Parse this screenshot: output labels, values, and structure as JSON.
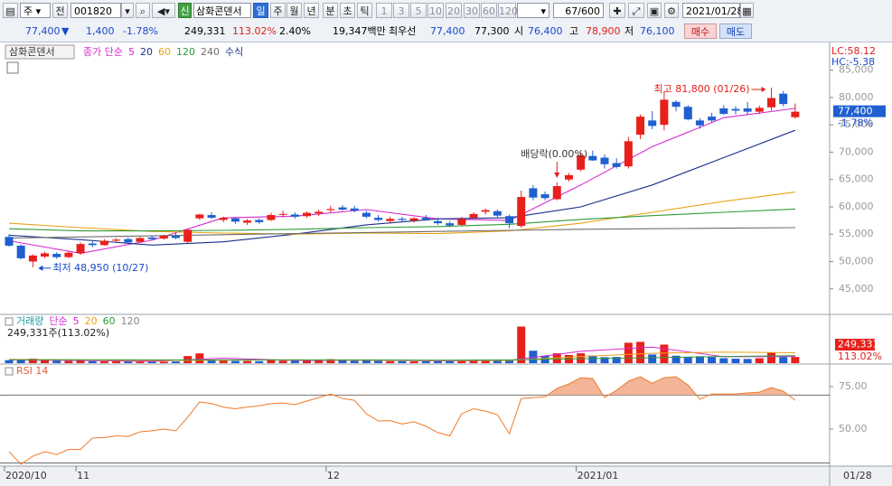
{
  "toolbar": {
    "market": "주",
    "prev_button": "전",
    "code": "001820",
    "new_badge": "신",
    "name": "삼화콘덴서",
    "periods": [
      "일",
      "주",
      "월",
      "년",
      "분",
      "초",
      "틱"
    ],
    "intervals": [
      "1",
      "3",
      "5",
      "10",
      "20",
      "30",
      "60",
      "120"
    ],
    "count": "67/600",
    "date": "2021/01/28"
  },
  "quote_bar": {
    "price": "77,400",
    "arrow": "▼",
    "change": "1,400",
    "change_rate": "-1.78%",
    "volume": "249,331",
    "volume_ratio": "113.02%",
    "turnover": "2.40%",
    "amount": "19,347백만",
    "best_label": "최우선",
    "ask": "77,400",
    "bid": "77,300",
    "open_label": "시",
    "open": "76,400",
    "high_label": "고",
    "high": "78,900",
    "low_label": "저",
    "low": "76,100",
    "buy": "매수",
    "sell": "매도"
  },
  "chart_data": [
    {
      "type": "candlestick",
      "name_button": "삼화콘덴서",
      "ma_label": "종가 단순",
      "formula_label": "수식",
      "categories": [
        "2020/10",
        null,
        null,
        null,
        null,
        null,
        "11",
        null,
        null,
        null,
        null,
        null,
        null,
        null,
        null,
        null,
        null,
        null,
        null,
        null,
        null,
        null,
        null,
        null,
        null,
        null,
        null,
        "12",
        null,
        null,
        null,
        null,
        null,
        null,
        null,
        null,
        null,
        null,
        null,
        null,
        null,
        null,
        null,
        null,
        null,
        null,
        null,
        null,
        "2021/01",
        null,
        null,
        null,
        null,
        null,
        null,
        null,
        null,
        null,
        null,
        null,
        null,
        null,
        null,
        null,
        null,
        null,
        null
      ],
      "open": [
        54500,
        52900,
        50000,
        50900,
        51400,
        50800,
        51500,
        53300,
        53000,
        53800,
        54100,
        53600,
        54400,
        54200,
        54700,
        53600,
        57900,
        58500,
        57600,
        57900,
        57100,
        57600,
        57600,
        58600,
        58600,
        58300,
        58800,
        59400,
        59900,
        59700,
        58900,
        58000,
        57400,
        57800,
        57500,
        58000,
        57400,
        57000,
        56700,
        58000,
        59100,
        59200,
        58300,
        56500,
        63400,
        62300,
        61400,
        65000,
        66800,
        69300,
        69000,
        68000,
        67400,
        73200,
        75800,
        75000,
        79200,
        78300,
        75800,
        76500,
        78000,
        77900,
        78000,
        77400,
        78200,
        80700,
        76400
      ],
      "high": [
        55000,
        53100,
        51300,
        51800,
        51700,
        51900,
        53500,
        53700,
        54100,
        54300,
        54400,
        54500,
        54800,
        54900,
        55300,
        56000,
        58700,
        59000,
        58200,
        58100,
        57800,
        57900,
        58900,
        59300,
        59000,
        59200,
        59500,
        60200,
        60300,
        60200,
        59300,
        58500,
        58200,
        58200,
        58100,
        58500,
        58000,
        57400,
        58200,
        59000,
        59700,
        59500,
        58600,
        63000,
        64000,
        62800,
        64500,
        66200,
        70000,
        70300,
        69600,
        68900,
        72800,
        76900,
        77500,
        81000,
        79500,
        78600,
        76200,
        77200,
        78600,
        78400,
        79200,
        78500,
        81800,
        81200,
        78900
      ],
      "low": [
        52700,
        50400,
        48950,
        50600,
        50500,
        50600,
        51200,
        52600,
        52900,
        53500,
        53300,
        53500,
        53900,
        54000,
        54100,
        53400,
        57600,
        57800,
        57200,
        56900,
        56700,
        56900,
        57400,
        58100,
        57800,
        58000,
        58300,
        59000,
        59300,
        59000,
        57900,
        57300,
        56900,
        57300,
        57100,
        57500,
        56700,
        56300,
        56500,
        57800,
        58600,
        58100,
        56100,
        56200,
        61200,
        61200,
        61200,
        64600,
        66500,
        68400,
        67000,
        67000,
        67000,
        72400,
        74200,
        74000,
        77500,
        75800,
        74300,
        75400,
        76800,
        76900,
        76800,
        77000,
        77600,
        78400,
        76100
      ],
      "close": [
        52900,
        50600,
        51100,
        51500,
        50800,
        51600,
        53200,
        53000,
        53800,
        54000,
        53500,
        54300,
        54100,
        54700,
        54300,
        55800,
        58600,
        58000,
        58000,
        57300,
        57500,
        57200,
        58500,
        58700,
        58200,
        58900,
        59100,
        59600,
        59500,
        59300,
        58200,
        57600,
        57800,
        57600,
        57900,
        57700,
        57000,
        56600,
        57800,
        58700,
        59400,
        58400,
        57000,
        61800,
        61700,
        61600,
        63800,
        65800,
        69400,
        68500,
        67800,
        67300,
        72000,
        76500,
        74800,
        79600,
        78300,
        76000,
        74900,
        75800,
        77000,
        77600,
        77400,
        78100,
        79900,
        78800,
        77400
      ],
      "up_color": "#e8201c",
      "down_color": "#1f5fd0",
      "ylim": [
        40500,
        89900
      ],
      "yticks": [
        {
          "value": 45000,
          "label": "45,000"
        },
        {
          "value": 50000,
          "label": "50,000"
        },
        {
          "value": 55000,
          "label": "55,000"
        },
        {
          "value": 60000,
          "label": "60,000"
        },
        {
          "value": 65000,
          "label": "65,000"
        },
        {
          "value": 70000,
          "label": "70,000"
        },
        {
          "value": 75000,
          "label": "75,000"
        },
        {
          "value": 80000,
          "label": "80,000"
        },
        {
          "value": 85000,
          "label": "85,000"
        }
      ],
      "series": [
        {
          "name": "5",
          "color": "#d62bd0",
          "x": [
            0,
            6,
            12,
            18,
            24,
            30,
            36,
            42,
            48,
            54,
            60,
            66
          ],
          "values": [
            53800,
            51500,
            53900,
            58000,
            58300,
            59500,
            57800,
            57500,
            64000,
            71000,
            76300,
            78000
          ]
        },
        {
          "name": "20",
          "color": "#1b2f8a",
          "x": [
            0,
            6,
            12,
            18,
            24,
            30,
            36,
            42,
            48,
            54,
            60,
            66
          ],
          "values": [
            54800,
            54000,
            53000,
            53600,
            55000,
            56700,
            57800,
            58000,
            60000,
            64000,
            69000,
            74000
          ]
        },
        {
          "name": "60",
          "color": "#e8a317",
          "x": [
            0,
            6,
            12,
            18,
            24,
            30,
            36,
            42,
            48,
            54,
            60,
            66
          ],
          "values": [
            57000,
            56200,
            55500,
            55200,
            55000,
            55200,
            55100,
            55600,
            57000,
            59000,
            61000,
            62700
          ]
        },
        {
          "name": "120",
          "color": "#2e9a3a",
          "x": [
            0,
            6,
            12,
            18,
            24,
            30,
            36,
            42,
            48,
            54,
            60,
            66
          ],
          "values": [
            56000,
            55600,
            55600,
            55700,
            55900,
            56200,
            56400,
            56800,
            57700,
            58400,
            59000,
            59600
          ]
        },
        {
          "name": "240",
          "color": "#6d6d6d",
          "x": [
            0,
            6,
            12,
            18,
            24,
            30,
            36,
            42,
            48,
            54,
            60,
            66
          ],
          "values": [
            54300,
            54500,
            54700,
            54900,
            55100,
            55300,
            55500,
            55700,
            55900,
            56000,
            56100,
            56200
          ]
        }
      ],
      "high_annotation": "최고 81,800 (01/26)",
      "low_annotation": "최저 48,950 (10/27)",
      "dividend_annotation": "배당락(0.00%)",
      "last_price_label": "77,400",
      "last_change_label": "-1.78%",
      "lc_label": "LC:58.12",
      "hc_label": "HC:-5.38",
      "current_date_label": "01/28"
    },
    {
      "type": "bar",
      "title": "거래량",
      "ma_label": "단순",
      "info_label": "249,331주(113.02%)",
      "last_value_label": "249,331",
      "last_ratio_label": "113.02%",
      "values": [
        120000,
        150000,
        180000,
        120000,
        100000,
        90000,
        110000,
        80000,
        70000,
        80000,
        70000,
        60000,
        70000,
        60000,
        70000,
        287000,
        394000,
        130000,
        100000,
        90000,
        90000,
        80000,
        150000,
        100000,
        90000,
        120000,
        130000,
        160000,
        110000,
        100000,
        110000,
        90000,
        80000,
        80000,
        70000,
        80000,
        110000,
        90000,
        80000,
        130000,
        140000,
        100000,
        120000,
        1480000,
        502000,
        300000,
        400000,
        330000,
        400000,
        310000,
        240000,
        250000,
        825000,
        860000,
        350000,
        750000,
        300000,
        250000,
        280000,
        250000,
        200000,
        180000,
        170000,
        200000,
        430000,
        250000,
        249331
      ],
      "ylim": [
        0,
        1900000
      ],
      "series": [
        {
          "name": "5",
          "color": "#d62bd0",
          "x": [
            0,
            6,
            12,
            18,
            24,
            30,
            36,
            42,
            48,
            54,
            60,
            66
          ],
          "values": [
            130000,
            110000,
            70000,
            200000,
            110000,
            120000,
            90000,
            110000,
            480000,
            650000,
            260000,
            270000
          ]
        },
        {
          "name": "20",
          "color": "#e8a317",
          "x": [
            0,
            6,
            12,
            18,
            24,
            30,
            36,
            42,
            48,
            54,
            60,
            66
          ],
          "values": [
            150000,
            130000,
            110000,
            120000,
            130000,
            120000,
            110000,
            110000,
            270000,
            400000,
            450000,
            420000
          ]
        },
        {
          "name": "60",
          "color": "#2e9a3a",
          "x": [
            0,
            6,
            12,
            18,
            24,
            30,
            36,
            42,
            48,
            54,
            60,
            66
          ],
          "values": [
            140000,
            140000,
            130000,
            130000,
            130000,
            130000,
            120000,
            130000,
            180000,
            220000,
            270000,
            300000
          ]
        }
      ],
      "legend_extra": "120"
    },
    {
      "type": "line",
      "title": "RSI 14",
      "color": "#f07a28",
      "fill_color": "#f2b597",
      "values": [
        36.7,
        29.3,
        34,
        36.7,
        35,
        38,
        38,
        44.7,
        45,
        46,
        45.7,
        48.4,
        49,
        50,
        49,
        57,
        66,
        65,
        63,
        62,
        63,
        63.8,
        65,
        65.4,
        64.4,
        66.5,
        68.6,
        70.7,
        68,
        67,
        59,
        54.8,
        55,
        53,
        54.3,
        51.6,
        47.9,
        46,
        59,
        62,
        60.6,
        58.5,
        47.3,
        68,
        68.6,
        69,
        74,
        76.6,
        80.3,
        79.8,
        68.6,
        72.9,
        78.2,
        80.9,
        77,
        80.3,
        80.9,
        76,
        67.6,
        70.7,
        70.7,
        70.7,
        71.3,
        71.8,
        74.5,
        72.3,
        67
      ],
      "ylim": [
        28.7,
        87.8
      ],
      "yticks": [
        {
          "value": 75,
          "label": "75.00"
        },
        {
          "value": 50,
          "label": "50.00"
        }
      ],
      "levels": [
        70,
        30
      ]
    }
  ]
}
